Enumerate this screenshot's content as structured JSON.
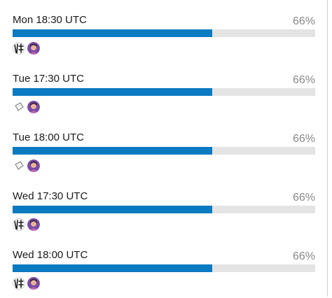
{
  "poll": {
    "options": [
      {
        "label": "Mon 18:30 UTC",
        "percent": "66%",
        "fill": 0.66,
        "voters": [
          "calligraphy-avatar",
          "purple-portrait-avatar"
        ]
      },
      {
        "label": "Tue 17:30 UTC",
        "percent": "66%",
        "fill": 0.66,
        "voters": [
          "white-shape-avatar",
          "purple-portrait-avatar"
        ]
      },
      {
        "label": "Tue 18:00 UTC",
        "percent": "66%",
        "fill": 0.66,
        "voters": [
          "white-shape-avatar",
          "purple-portrait-avatar"
        ]
      },
      {
        "label": "Wed 17:30 UTC",
        "percent": "66%",
        "fill": 0.66,
        "voters": [
          "calligraphy-avatar",
          "purple-portrait-avatar"
        ]
      },
      {
        "label": "Wed 18:00 UTC",
        "percent": "66%",
        "fill": 0.66,
        "voters": [
          "calligraphy-avatar",
          "purple-portrait-avatar"
        ]
      }
    ],
    "colors": {
      "bar_fill": "#0a7ac1",
      "bar_track": "#e4e4e4",
      "percent_text": "#888888"
    }
  }
}
